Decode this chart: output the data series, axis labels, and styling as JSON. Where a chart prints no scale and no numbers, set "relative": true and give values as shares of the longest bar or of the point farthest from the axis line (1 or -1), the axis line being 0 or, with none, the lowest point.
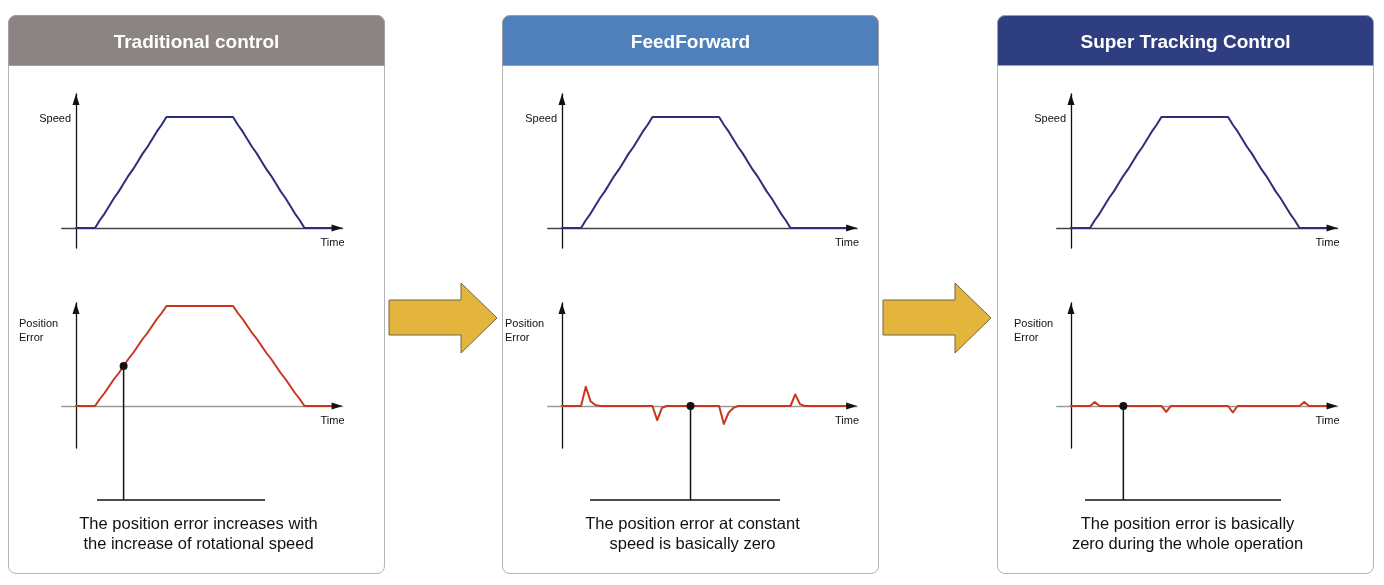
{
  "chart_data": [
    {
      "type": "line",
      "title": "Traditional control",
      "xlabel": "Time",
      "ylabel": "Speed",
      "relative": true,
      "color": "#2e2e78",
      "categories": [
        null,
        null,
        null,
        null,
        null,
        null,
        null,
        null,
        null,
        null,
        null,
        null,
        null,
        null,
        null,
        null,
        null,
        null,
        null,
        null,
        null,
        null,
        null,
        null,
        null,
        null,
        null,
        null,
        null,
        null,
        null,
        null,
        null,
        null,
        null,
        null,
        null,
        null,
        null,
        null,
        null,
        null,
        null,
        null,
        null,
        null,
        null,
        null,
        null,
        null,
        null,
        null,
        null,
        null,
        null
      ],
      "values": [
        0,
        0,
        0,
        0,
        0,
        0.07,
        0.13,
        0.2,
        0.27,
        0.33,
        0.4,
        0.47,
        0.53,
        0.6,
        0.67,
        0.73,
        0.8,
        0.87,
        0.93,
        1,
        1,
        1,
        1,
        1,
        1,
        1,
        1,
        1,
        1,
        1,
        1,
        1,
        1,
        1,
        0.93,
        0.87,
        0.8,
        0.73,
        0.67,
        0.6,
        0.53,
        0.47,
        0.4,
        0.33,
        0.27,
        0.2,
        0.13,
        0.07,
        0,
        0,
        0,
        0,
        0,
        0,
        0
      ]
    },
    {
      "type": "line",
      "xlabel": "Time",
      "ylabel": "Position Error",
      "relative": true,
      "color": "#c8361f",
      "annotations": [
        "The position error increases with the increase of rotational speed"
      ],
      "categories": [
        null,
        null,
        null,
        null,
        null,
        null,
        null,
        null,
        null,
        null,
        null,
        null,
        null,
        null,
        null,
        null,
        null,
        null,
        null,
        null,
        null,
        null,
        null,
        null,
        null,
        null,
        null,
        null,
        null,
        null,
        null,
        null,
        null,
        null,
        null,
        null,
        null,
        null,
        null,
        null,
        null,
        null,
        null,
        null,
        null,
        null,
        null,
        null,
        null,
        null,
        null,
        null,
        null,
        null,
        null
      ],
      "values": [
        0,
        0,
        0,
        0,
        0,
        0.07,
        0.13,
        0.2,
        0.27,
        0.33,
        0.4,
        0.47,
        0.53,
        0.6,
        0.67,
        0.73,
        0.8,
        0.87,
        0.93,
        1,
        1,
        1,
        1,
        1,
        1,
        1,
        1,
        1,
        1,
        1,
        1,
        1,
        1,
        1,
        0.93,
        0.87,
        0.8,
        0.73,
        0.67,
        0.6,
        0.53,
        0.47,
        0.4,
        0.33,
        0.27,
        0.2,
        0.13,
        0.07,
        0,
        0,
        0,
        0,
        0,
        0,
        0
      ]
    },
    {
      "type": "line",
      "title": "FeedForward",
      "xlabel": "Time",
      "ylabel": "Speed",
      "relative": true,
      "color": "#2e2e78",
      "categories": [
        null,
        null,
        null,
        null,
        null,
        null,
        null,
        null,
        null,
        null,
        null,
        null,
        null,
        null,
        null,
        null,
        null,
        null,
        null,
        null,
        null,
        null,
        null,
        null,
        null,
        null,
        null,
        null,
        null,
        null,
        null,
        null,
        null,
        null,
        null,
        null,
        null,
        null,
        null,
        null,
        null,
        null,
        null,
        null,
        null,
        null,
        null,
        null,
        null,
        null,
        null,
        null,
        null,
        null,
        null,
        null,
        null,
        null,
        null,
        null,
        null
      ],
      "values": [
        0,
        0,
        0,
        0,
        0,
        0.07,
        0.13,
        0.2,
        0.27,
        0.33,
        0.4,
        0.47,
        0.53,
        0.6,
        0.67,
        0.73,
        0.8,
        0.87,
        0.93,
        1,
        1,
        1,
        1,
        1,
        1,
        1,
        1,
        1,
        1,
        1,
        1,
        1,
        1,
        1,
        0.93,
        0.87,
        0.8,
        0.73,
        0.67,
        0.6,
        0.53,
        0.47,
        0.4,
        0.33,
        0.27,
        0.2,
        0.13,
        0.07,
        0,
        0,
        0,
        0,
        0,
        0,
        0,
        0,
        0,
        0,
        0,
        0,
        0
      ]
    },
    {
      "type": "line",
      "xlabel": "Time",
      "ylabel": "Position Error",
      "relative": true,
      "color": "#c8361f",
      "annotations": [
        "The position error at constant speed is basically zero"
      ],
      "categories": [
        null,
        null,
        null,
        null,
        null,
        null,
        null,
        null,
        null,
        null,
        null,
        null,
        null,
        null,
        null,
        null,
        null,
        null,
        null,
        null,
        null,
        null,
        null,
        null,
        null,
        null,
        null,
        null,
        null,
        null,
        null,
        null,
        null,
        null,
        null,
        null,
        null,
        null,
        null,
        null,
        null,
        null,
        null,
        null,
        null,
        null,
        null,
        null,
        null,
        null,
        null,
        null,
        null,
        null,
        null,
        null,
        null,
        null,
        null,
        null,
        null
      ],
      "values": [
        0,
        0,
        0,
        0,
        0,
        1,
        0.25,
        0.05,
        0,
        0,
        0,
        0,
        0,
        0,
        0,
        0,
        0,
        0,
        0,
        0,
        -0.73,
        -0.1,
        0,
        0,
        0,
        0,
        0,
        0,
        0,
        0,
        0,
        0,
        0,
        0,
        -0.93,
        -0.35,
        -0.1,
        0,
        0,
        0,
        0,
        0,
        0,
        0,
        0,
        0,
        0,
        0,
        0,
        0.6,
        0.1,
        0,
        0,
        0,
        0,
        0,
        0,
        0,
        0,
        0,
        0
      ]
    },
    {
      "type": "line",
      "title": "Super Tracking Control",
      "xlabel": "Time",
      "ylabel": "Speed",
      "relative": true,
      "color": "#2e2e78",
      "categories": [
        null,
        null,
        null,
        null,
        null,
        null,
        null,
        null,
        null,
        null,
        null,
        null,
        null,
        null,
        null,
        null,
        null,
        null,
        null,
        null,
        null,
        null,
        null,
        null,
        null,
        null,
        null,
        null,
        null,
        null,
        null,
        null,
        null,
        null,
        null,
        null,
        null,
        null,
        null,
        null,
        null,
        null,
        null,
        null,
        null,
        null,
        null,
        null,
        null,
        null,
        null,
        null,
        null,
        null,
        null
      ],
      "values": [
        0,
        0,
        0,
        0,
        0,
        0.07,
        0.13,
        0.2,
        0.27,
        0.33,
        0.4,
        0.47,
        0.53,
        0.6,
        0.67,
        0.73,
        0.8,
        0.87,
        0.93,
        1,
        1,
        1,
        1,
        1,
        1,
        1,
        1,
        1,
        1,
        1,
        1,
        1,
        1,
        1,
        0.93,
        0.87,
        0.8,
        0.73,
        0.67,
        0.6,
        0.53,
        0.47,
        0.4,
        0.33,
        0.27,
        0.2,
        0.13,
        0.07,
        0,
        0,
        0,
        0,
        0,
        0,
        0
      ]
    },
    {
      "type": "line",
      "xlabel": "Time",
      "ylabel": "Position Error",
      "relative": true,
      "color": "#c8361f",
      "annotations": [
        "The position error is basically zero during the whole operation"
      ],
      "categories": [
        null,
        null,
        null,
        null,
        null,
        null,
        null,
        null,
        null,
        null,
        null,
        null,
        null,
        null,
        null,
        null,
        null,
        null,
        null,
        null,
        null,
        null,
        null,
        null,
        null,
        null,
        null,
        null,
        null,
        null,
        null,
        null,
        null,
        null,
        null,
        null,
        null,
        null,
        null,
        null,
        null,
        null,
        null,
        null,
        null,
        null,
        null,
        null,
        null,
        null,
        null,
        null,
        null,
        null,
        null
      ],
      "values": [
        0,
        0,
        0,
        0,
        0,
        0.6,
        0,
        0,
        0,
        0,
        0,
        0,
        0,
        0,
        0,
        0,
        0,
        0,
        0,
        0,
        -0.9,
        0,
        0,
        0,
        0,
        0,
        0,
        0,
        0,
        0,
        0,
        0,
        0,
        0,
        -1,
        0,
        0,
        0,
        0,
        0,
        0,
        0,
        0,
        0,
        0,
        0,
        0,
        0,
        0,
        0.6,
        0,
        0,
        0,
        0,
        0
      ]
    }
  ]
}
